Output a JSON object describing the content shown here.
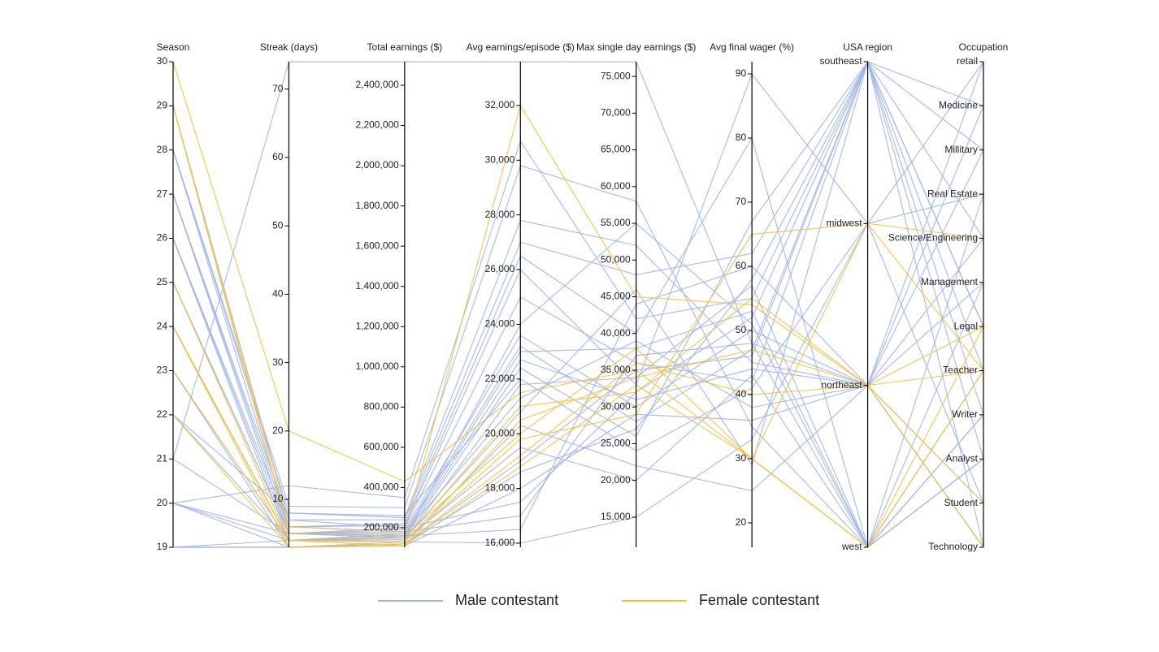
{
  "chart_data": {
    "type": "parallel",
    "dimensions": [
      {
        "name": "Season",
        "ylim": [
          19,
          30
        ],
        "yticks": [
          19,
          20,
          21,
          22,
          23,
          24,
          25,
          26,
          27,
          28,
          29,
          30
        ]
      },
      {
        "name": "Streak (days)",
        "ylim": [
          3,
          74
        ],
        "yticks": [
          10,
          20,
          30,
          40,
          50,
          60,
          70
        ]
      },
      {
        "name": "Total earnings ($)",
        "ylim": [
          103000,
          2517000
        ],
        "yticks": [
          {
            "value": 200000,
            "label": "200,000"
          },
          {
            "value": 400000,
            "label": "400,000"
          },
          {
            "value": 600000,
            "label": "600,000"
          },
          {
            "value": 800000,
            "label": "800,000"
          },
          {
            "value": 1000000,
            "label": "1,000,000"
          },
          {
            "value": 1200000,
            "label": "1,200,000"
          },
          {
            "value": 1400000,
            "label": "1,400,000"
          },
          {
            "value": 1600000,
            "label": "1,600,000"
          },
          {
            "value": 1800000,
            "label": "1,800,000"
          },
          {
            "value": 2000000,
            "label": "2,000,000"
          },
          {
            "value": 2200000,
            "label": "2,200,000"
          },
          {
            "value": 2400000,
            "label": "2,400,000"
          }
        ]
      },
      {
        "name": "Avg earnings/episode ($)",
        "ylim": [
          15850,
          33600
        ],
        "yticks": [
          {
            "value": 16000,
            "label": "16,000"
          },
          {
            "value": 18000,
            "label": "18,000"
          },
          {
            "value": 20000,
            "label": "20,000"
          },
          {
            "value": 22000,
            "label": "22,000"
          },
          {
            "value": 24000,
            "label": "24,000"
          },
          {
            "value": 26000,
            "label": "26,000"
          },
          {
            "value": 28000,
            "label": "28,000"
          },
          {
            "value": 30000,
            "label": "30,000"
          },
          {
            "value": 32000,
            "label": "32,000"
          }
        ]
      },
      {
        "name": "Max single day earnings ($)",
        "ylim": [
          10900,
          77000
        ],
        "yticks": [
          {
            "value": 15000,
            "label": "15,000"
          },
          {
            "value": 20000,
            "label": "20,000"
          },
          {
            "value": 25000,
            "label": "25,000"
          },
          {
            "value": 30000,
            "label": "30,000"
          },
          {
            "value": 35000,
            "label": "35,000"
          },
          {
            "value": 40000,
            "label": "40,000"
          },
          {
            "value": 45000,
            "label": "45,000"
          },
          {
            "value": 50000,
            "label": "50,000"
          },
          {
            "value": 55000,
            "label": "55,000"
          },
          {
            "value": 60000,
            "label": "60,000"
          },
          {
            "value": 65000,
            "label": "65,000"
          },
          {
            "value": 70000,
            "label": "70,000"
          },
          {
            "value": 75000,
            "label": "75,000"
          }
        ]
      },
      {
        "name": "Avg final wager (%)",
        "ylim": [
          16.2,
          91.9
        ],
        "yticks": [
          20,
          30,
          40,
          50,
          60,
          70,
          80,
          90
        ]
      },
      {
        "name": "USA region",
        "categories": [
          "southeast",
          "midwest",
          "northeast",
          "west"
        ]
      },
      {
        "name": "Occupation",
        "categories": [
          "retail",
          "Medicine",
          "Millitary",
          "Real Estate",
          "Science/Engineering",
          "Management",
          "Legal",
          "Teacher",
          "Writer",
          "Analyst",
          "Student",
          "Technology"
        ]
      }
    ],
    "series": [
      {
        "name": "Male contestant",
        "color": "#9db3e8",
        "lines": [
          [
            21,
            74,
            2517000,
            33600,
            77000,
            48,
            "northeast",
            "Technology"
          ],
          [
            20,
            12,
            350000,
            30700,
            42000,
            55,
            "southeast",
            "Medicine"
          ],
          [
            28,
            9,
            300000,
            29800,
            58000,
            35,
            "west",
            "Analyst"
          ],
          [
            28,
            8,
            250000,
            27800,
            52000,
            45,
            "northeast",
            "retail"
          ],
          [
            27,
            7,
            240000,
            27000,
            48000,
            62,
            "southeast",
            "Millitary"
          ],
          [
            27,
            6,
            220000,
            26500,
            40000,
            80,
            "west",
            "Writer"
          ],
          [
            26,
            6,
            210000,
            26000,
            33000,
            90,
            "midwest",
            "Real Estate"
          ],
          [
            26,
            5,
            200000,
            25000,
            36000,
            42,
            "southeast",
            "Science/Engineering"
          ],
          [
            25,
            5,
            190000,
            23600,
            30000,
            50,
            "northeast",
            "Management"
          ],
          [
            25,
            5,
            180000,
            23200,
            28000,
            47,
            "southeast",
            "Legal"
          ],
          [
            24,
            4,
            170000,
            23000,
            38000,
            53,
            "west",
            "Teacher"
          ],
          [
            24,
            4,
            160000,
            22700,
            31000,
            44,
            "northeast",
            "Student"
          ],
          [
            23,
            4,
            150000,
            22400,
            26000,
            67,
            "southeast",
            "Technology"
          ],
          [
            22,
            8,
            260000,
            22000,
            24000,
            41,
            "midwest",
            "retail"
          ],
          [
            22,
            4,
            140000,
            21800,
            34000,
            57,
            "west",
            "Analyst"
          ],
          [
            20,
            5,
            170000,
            21300,
            39000,
            38,
            "northeast",
            "Medicine"
          ],
          [
            20,
            4,
            150000,
            20800,
            46000,
            29,
            "southeast",
            "Writer"
          ],
          [
            20,
            3,
            130000,
            20300,
            22000,
            25,
            "northeast",
            "Science/Engineering"
          ],
          [
            19,
            4,
            140000,
            19500,
            20000,
            43,
            "west",
            "Management"
          ],
          [
            19,
            3,
            120000,
            18600,
            27000,
            58,
            "southeast",
            "Legal"
          ],
          [
            19,
            3,
            110000,
            18000,
            29000,
            36,
            "northeast",
            "Millitary"
          ],
          [
            29,
            7,
            200000,
            17500,
            32000,
            52,
            "southeast",
            "Teacher"
          ],
          [
            28,
            6,
            180000,
            17000,
            37000,
            48,
            "west",
            "Writer"
          ],
          [
            27,
            5,
            160000,
            16500,
            44000,
            60,
            "northeast",
            "Technology"
          ],
          [
            26,
            4,
            130000,
            16000,
            15000,
            33,
            "midwest",
            "Student"
          ],
          [
            23,
            3,
            120000,
            19000,
            35000,
            46,
            "southeast",
            "Analyst"
          ],
          [
            21,
            5,
            150000,
            24000,
            55000,
            51,
            "west",
            "Real Estate"
          ]
        ]
      },
      {
        "name": "Female contestant",
        "color": "#f5bf3c",
        "lines": [
          [
            30,
            20,
            430000,
            21500,
            35000,
            30,
            "midwest",
            "Science/Engineering"
          ],
          [
            29,
            6,
            180000,
            32000,
            45000,
            54,
            "northeast",
            "Teacher"
          ],
          [
            29,
            5,
            160000,
            20000,
            38000,
            30,
            "west",
            "Legal"
          ],
          [
            25,
            4,
            140000,
            21000,
            32000,
            55,
            "northeast",
            "Student"
          ],
          [
            24,
            4,
            130000,
            19800,
            29000,
            65,
            "midwest",
            "Teacher"
          ],
          [
            24,
            3,
            120000,
            19200,
            36000,
            40,
            "northeast",
            "Technology"
          ],
          [
            23,
            4,
            110000,
            18800,
            33000,
            30,
            "west",
            "Teacher"
          ],
          [
            22,
            3,
            110000,
            20500,
            34000,
            47,
            "northeast",
            "Legal"
          ]
        ]
      }
    ]
  }
}
